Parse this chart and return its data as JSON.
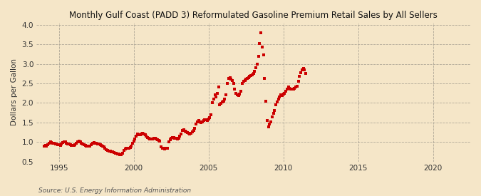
{
  "title": "Monthly Gulf Coast (PADD 3) Reformulated Gasoline Premium Retail Sales by All Sellers",
  "ylabel": "Dollars per Gallon",
  "source": "Source: U.S. Energy Information Administration",
  "background_color": "#f5e6c8",
  "dot_color": "#cc0000",
  "xlim": [
    1993.5,
    2022.5
  ],
  "ylim": [
    0.5,
    4.05
  ],
  "yticks": [
    0.5,
    1.0,
    1.5,
    2.0,
    2.5,
    3.0,
    3.5,
    4.0
  ],
  "xticks": [
    1995,
    2000,
    2005,
    2010,
    2015,
    2020
  ],
  "data": [
    [
      1994.0,
      0.9
    ],
    [
      1994.08,
      0.91
    ],
    [
      1994.17,
      0.9
    ],
    [
      1994.25,
      0.93
    ],
    [
      1994.33,
      0.97
    ],
    [
      1994.42,
      1.0
    ],
    [
      1994.5,
      0.98
    ],
    [
      1994.58,
      0.97
    ],
    [
      1994.67,
      0.96
    ],
    [
      1994.75,
      0.95
    ],
    [
      1994.83,
      0.94
    ],
    [
      1994.92,
      0.93
    ],
    [
      1995.0,
      0.93
    ],
    [
      1995.08,
      0.92
    ],
    [
      1995.17,
      0.95
    ],
    [
      1995.25,
      0.98
    ],
    [
      1995.33,
      1.01
    ],
    [
      1995.42,
      1.0
    ],
    [
      1995.5,
      0.97
    ],
    [
      1995.58,
      0.95
    ],
    [
      1995.67,
      0.94
    ],
    [
      1995.75,
      0.93
    ],
    [
      1995.83,
      0.92
    ],
    [
      1995.92,
      0.91
    ],
    [
      1996.0,
      0.91
    ],
    [
      1996.08,
      0.93
    ],
    [
      1996.17,
      0.97
    ],
    [
      1996.25,
      1.01
    ],
    [
      1996.33,
      1.03
    ],
    [
      1996.42,
      1.0
    ],
    [
      1996.5,
      0.97
    ],
    [
      1996.58,
      0.94
    ],
    [
      1996.67,
      0.93
    ],
    [
      1996.75,
      0.92
    ],
    [
      1996.83,
      0.9
    ],
    [
      1996.92,
      0.89
    ],
    [
      1997.0,
      0.89
    ],
    [
      1997.08,
      0.9
    ],
    [
      1997.17,
      0.93
    ],
    [
      1997.25,
      0.96
    ],
    [
      1997.33,
      0.98
    ],
    [
      1997.42,
      0.97
    ],
    [
      1997.5,
      0.96
    ],
    [
      1997.58,
      0.95
    ],
    [
      1997.67,
      0.94
    ],
    [
      1997.75,
      0.93
    ],
    [
      1997.83,
      0.91
    ],
    [
      1997.92,
      0.89
    ],
    [
      1998.0,
      0.87
    ],
    [
      1998.08,
      0.84
    ],
    [
      1998.17,
      0.81
    ],
    [
      1998.25,
      0.78
    ],
    [
      1998.33,
      0.77
    ],
    [
      1998.42,
      0.76
    ],
    [
      1998.5,
      0.75
    ],
    [
      1998.58,
      0.74
    ],
    [
      1998.67,
      0.73
    ],
    [
      1998.75,
      0.72
    ],
    [
      1998.83,
      0.71
    ],
    [
      1998.92,
      0.7
    ],
    [
      1999.0,
      0.7
    ],
    [
      1999.08,
      0.68
    ],
    [
      1999.17,
      0.67
    ],
    [
      1999.25,
      0.72
    ],
    [
      1999.33,
      0.78
    ],
    [
      1999.42,
      0.82
    ],
    [
      1999.5,
      0.83
    ],
    [
      1999.58,
      0.83
    ],
    [
      1999.67,
      0.84
    ],
    [
      1999.75,
      0.85
    ],
    [
      1999.83,
      0.9
    ],
    [
      1999.92,
      0.96
    ],
    [
      2000.0,
      1.02
    ],
    [
      2000.08,
      1.08
    ],
    [
      2000.17,
      1.15
    ],
    [
      2000.25,
      1.2
    ],
    [
      2000.33,
      1.19
    ],
    [
      2000.42,
      1.18
    ],
    [
      2000.5,
      1.2
    ],
    [
      2000.58,
      1.22
    ],
    [
      2000.67,
      1.21
    ],
    [
      2000.75,
      1.18
    ],
    [
      2000.83,
      1.15
    ],
    [
      2000.92,
      1.12
    ],
    [
      2001.0,
      1.1
    ],
    [
      2001.08,
      1.08
    ],
    [
      2001.17,
      1.07
    ],
    [
      2001.25,
      1.08
    ],
    [
      2001.33,
      1.1
    ],
    [
      2001.42,
      1.09
    ],
    [
      2001.5,
      1.07
    ],
    [
      2001.58,
      1.06
    ],
    [
      2001.67,
      1.04
    ],
    [
      2001.75,
      1.02
    ],
    [
      2001.83,
      0.88
    ],
    [
      2001.92,
      0.83
    ],
    [
      2002.0,
      0.83
    ],
    [
      2002.08,
      0.82
    ],
    [
      2002.17,
      0.83
    ],
    [
      2002.25,
      0.83
    ],
    [
      2002.33,
      1.0
    ],
    [
      2002.42,
      1.05
    ],
    [
      2002.5,
      1.1
    ],
    [
      2002.58,
      1.12
    ],
    [
      2002.67,
      1.11
    ],
    [
      2002.75,
      1.1
    ],
    [
      2002.83,
      1.09
    ],
    [
      2002.92,
      1.08
    ],
    [
      2003.0,
      1.1
    ],
    [
      2003.08,
      1.15
    ],
    [
      2003.17,
      1.2
    ],
    [
      2003.25,
      1.3
    ],
    [
      2003.33,
      1.32
    ],
    [
      2003.42,
      1.28
    ],
    [
      2003.5,
      1.26
    ],
    [
      2003.58,
      1.24
    ],
    [
      2003.67,
      1.22
    ],
    [
      2003.75,
      1.2
    ],
    [
      2003.83,
      1.22
    ],
    [
      2003.92,
      1.25
    ],
    [
      2004.0,
      1.3
    ],
    [
      2004.08,
      1.35
    ],
    [
      2004.17,
      1.45
    ],
    [
      2004.25,
      1.52
    ],
    [
      2004.33,
      1.55
    ],
    [
      2004.42,
      1.52
    ],
    [
      2004.5,
      1.5
    ],
    [
      2004.58,
      1.52
    ],
    [
      2004.67,
      1.55
    ],
    [
      2004.75,
      1.57
    ],
    [
      2004.83,
      1.56
    ],
    [
      2004.92,
      1.55
    ],
    [
      2005.0,
      1.58
    ],
    [
      2005.08,
      1.62
    ],
    [
      2005.17,
      1.7
    ],
    [
      2005.25,
      2.0
    ],
    [
      2005.33,
      2.1
    ],
    [
      2005.42,
      2.2
    ],
    [
      2005.5,
      2.15
    ],
    [
      2005.58,
      2.25
    ],
    [
      2005.67,
      2.4
    ],
    [
      2005.75,
      1.95
    ],
    [
      2005.83,
      1.98
    ],
    [
      2005.92,
      2.02
    ],
    [
      2006.0,
      2.05
    ],
    [
      2006.08,
      2.1
    ],
    [
      2006.17,
      2.2
    ],
    [
      2006.25,
      2.5
    ],
    [
      2006.33,
      2.62
    ],
    [
      2006.42,
      2.65
    ],
    [
      2006.5,
      2.6
    ],
    [
      2006.58,
      2.58
    ],
    [
      2006.67,
      2.5
    ],
    [
      2006.75,
      2.35
    ],
    [
      2006.83,
      2.25
    ],
    [
      2006.92,
      2.2
    ],
    [
      2007.0,
      2.18
    ],
    [
      2007.08,
      2.22
    ],
    [
      2007.17,
      2.3
    ],
    [
      2007.25,
      2.5
    ],
    [
      2007.33,
      2.55
    ],
    [
      2007.42,
      2.58
    ],
    [
      2007.5,
      2.6
    ],
    [
      2007.58,
      2.62
    ],
    [
      2007.67,
      2.65
    ],
    [
      2007.75,
      2.68
    ],
    [
      2007.83,
      2.7
    ],
    [
      2007.92,
      2.72
    ],
    [
      2008.0,
      2.75
    ],
    [
      2008.08,
      2.8
    ],
    [
      2008.17,
      2.9
    ],
    [
      2008.25,
      3.0
    ],
    [
      2008.33,
      3.2
    ],
    [
      2008.42,
      3.52
    ],
    [
      2008.5,
      3.8
    ],
    [
      2008.58,
      3.42
    ],
    [
      2008.67,
      3.22
    ],
    [
      2008.75,
      2.62
    ],
    [
      2008.83,
      2.05
    ],
    [
      2008.92,
      1.55
    ],
    [
      2009.0,
      1.38
    ],
    [
      2009.08,
      1.45
    ],
    [
      2009.17,
      1.52
    ],
    [
      2009.25,
      1.65
    ],
    [
      2009.33,
      1.73
    ],
    [
      2009.42,
      1.8
    ],
    [
      2009.5,
      1.95
    ],
    [
      2009.58,
      2.02
    ],
    [
      2009.67,
      2.1
    ],
    [
      2009.75,
      2.15
    ],
    [
      2009.83,
      2.2
    ],
    [
      2009.92,
      2.18
    ],
    [
      2010.0,
      2.22
    ],
    [
      2010.08,
      2.25
    ],
    [
      2010.17,
      2.3
    ],
    [
      2010.25,
      2.35
    ],
    [
      2010.33,
      2.4
    ],
    [
      2010.42,
      2.38
    ],
    [
      2010.5,
      2.36
    ],
    [
      2010.58,
      2.35
    ],
    [
      2010.67,
      2.36
    ],
    [
      2010.75,
      2.38
    ],
    [
      2010.83,
      2.4
    ],
    [
      2010.92,
      2.42
    ],
    [
      2011.0,
      2.55
    ],
    [
      2011.08,
      2.68
    ],
    [
      2011.17,
      2.78
    ],
    [
      2011.25,
      2.85
    ],
    [
      2011.33,
      2.88
    ],
    [
      2011.42,
      2.85
    ],
    [
      2011.5,
      2.75
    ]
  ]
}
